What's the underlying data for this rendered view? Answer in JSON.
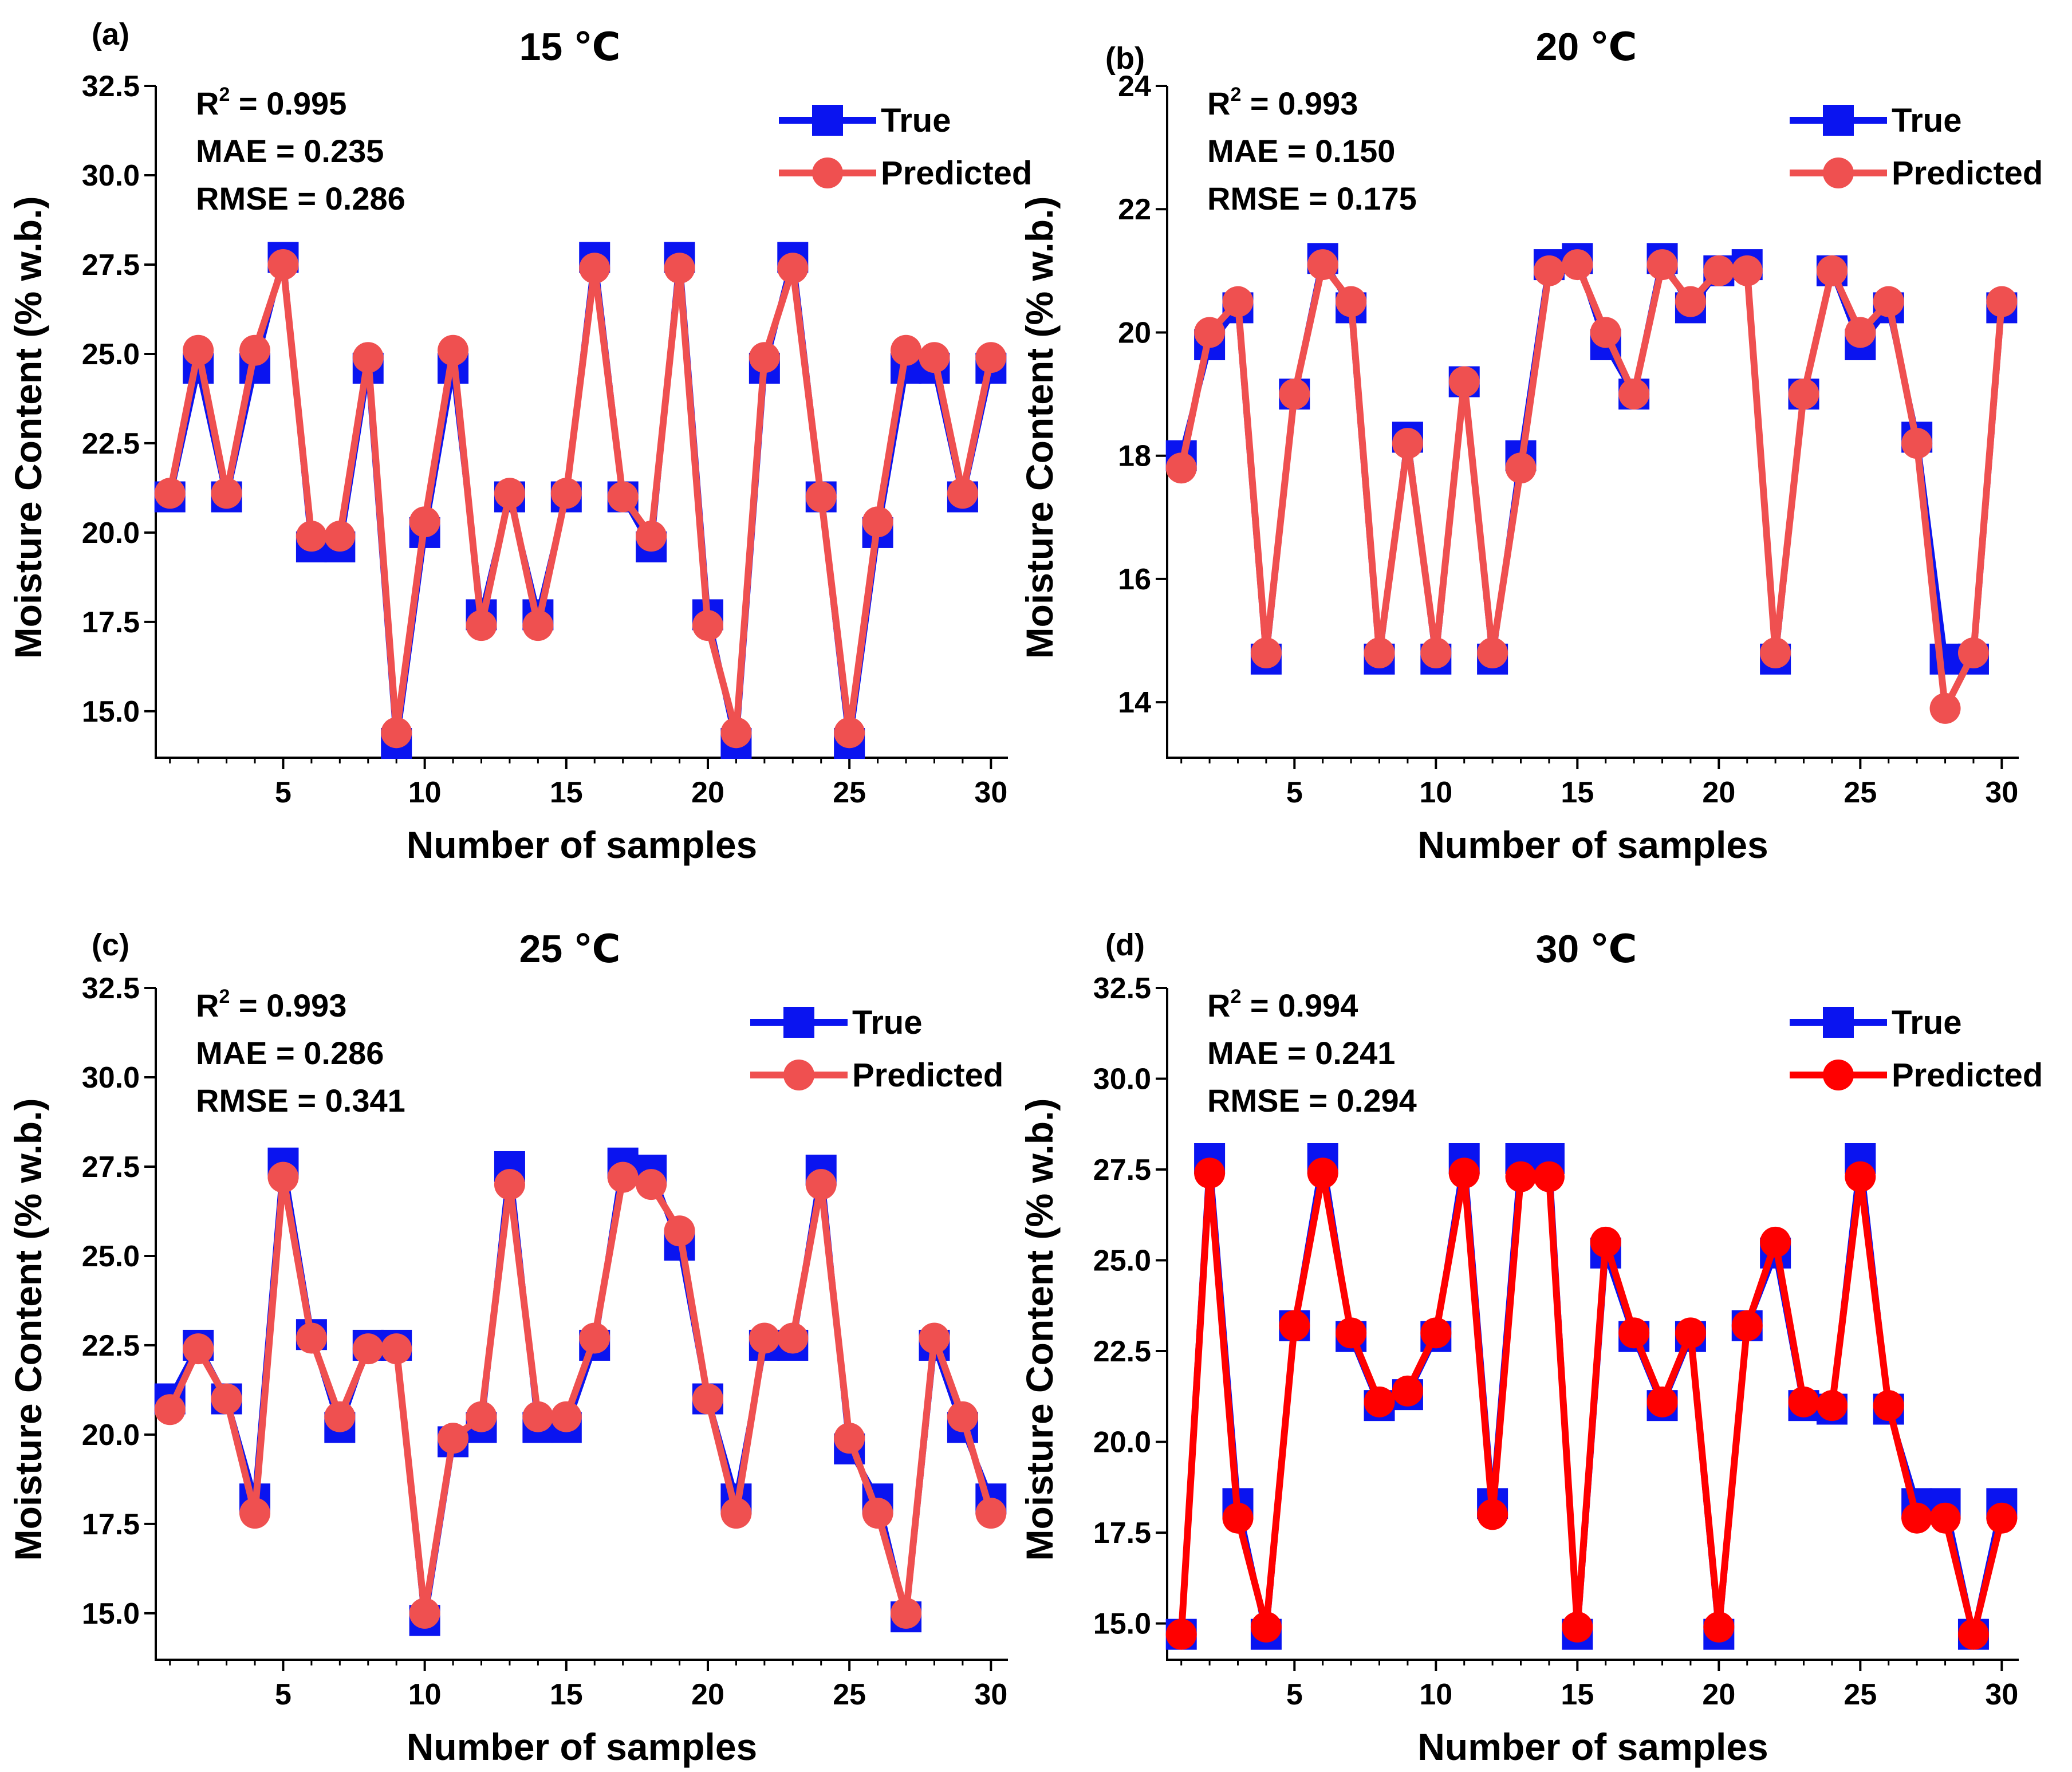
{
  "colors": {
    "true_color": "#0a14f0",
    "predicted_color": "#ef5050",
    "predicted_color_d": "#ff0000",
    "axis_color": "#000000"
  },
  "chart_data": [
    {
      "type": "line",
      "panel_label": "(a)",
      "title": "15 ℃",
      "xlabel": "Number of samples",
      "ylabel": "Moisture Content (% w.b.)",
      "xlim": [
        0.5,
        30.6
      ],
      "ylim": [
        13.7,
        32.5
      ],
      "xticks": [
        5,
        10,
        15,
        20,
        25,
        30
      ],
      "xtick_labels": [
        "5",
        "10",
        "15",
        "20",
        "25",
        "30"
      ],
      "yticks": [
        15,
        17.5,
        20,
        22.5,
        25,
        27.5,
        30,
        32.5
      ],
      "ytick_labels": [
        "15.0",
        "17.5",
        "20.0",
        "22.5",
        "25.0",
        "27.5",
        "30.0",
        "32.5"
      ],
      "metrics": {
        "r2_label": "R",
        "r2_sup": "2",
        "r2_value": " = 0.995",
        "mae": "MAE = 0.235",
        "rmse": "RMSE = 0.286"
      },
      "legend": {
        "placement": "top-right",
        "true_label": "True",
        "predicted_label": "Predicted"
      },
      "x": [
        1,
        2,
        3,
        4,
        5,
        6,
        7,
        8,
        9,
        10,
        11,
        12,
        13,
        14,
        15,
        16,
        17,
        18,
        19,
        20,
        21,
        22,
        23,
        24,
        25,
        26,
        27,
        28,
        29,
        30
      ],
      "series": [
        {
          "name": "True",
          "values": [
            21.0,
            24.6,
            21.0,
            24.6,
            27.7,
            19.6,
            19.6,
            24.6,
            14.1,
            20.0,
            24.6,
            17.7,
            21.0,
            17.7,
            21.0,
            27.7,
            21.0,
            19.6,
            27.7,
            17.7,
            14.1,
            24.6,
            27.7,
            21.0,
            14.1,
            20.0,
            24.6,
            24.6,
            21.0,
            24.6
          ]
        },
        {
          "name": "Predicted",
          "values": [
            21.1,
            25.1,
            21.1,
            25.1,
            27.5,
            19.9,
            19.9,
            24.9,
            14.4,
            20.3,
            25.1,
            17.4,
            21.1,
            17.4,
            21.1,
            27.4,
            21.0,
            19.9,
            27.4,
            17.4,
            14.4,
            24.9,
            27.4,
            21.0,
            14.4,
            20.3,
            25.1,
            24.9,
            21.1,
            24.9
          ]
        }
      ]
    },
    {
      "type": "line",
      "panel_label": "(b)",
      "title": "20 ℃",
      "xlabel": "Number of samples",
      "ylabel": "Moisture Content (% w.b.)",
      "xlim": [
        0.5,
        30.6
      ],
      "ylim": [
        13.1,
        24
      ],
      "xticks": [
        5,
        10,
        15,
        20,
        25,
        30
      ],
      "xtick_labels": [
        "5",
        "10",
        "15",
        "20",
        "25",
        "30"
      ],
      "yticks": [
        14,
        16,
        18,
        20,
        22,
        24
      ],
      "ytick_labels": [
        "14",
        "16",
        "18",
        "20",
        "22",
        "24"
      ],
      "metrics": {
        "r2_label": "R",
        "r2_sup": "2",
        "r2_value": " = 0.993",
        "mae": "MAE = 0.150",
        "rmse": "RMSE = 0.175"
      },
      "legend": {
        "placement": "top-right",
        "true_label": "True",
        "predicted_label": "Predicted"
      },
      "x": [
        1,
        2,
        3,
        4,
        5,
        6,
        7,
        8,
        9,
        10,
        11,
        12,
        13,
        14,
        15,
        16,
        17,
        18,
        19,
        20,
        21,
        22,
        23,
        24,
        25,
        26,
        27,
        28,
        29,
        30
      ],
      "series": [
        {
          "name": "True",
          "values": [
            18.0,
            19.8,
            20.4,
            14.7,
            19.0,
            21.2,
            20.4,
            14.7,
            18.3,
            14.7,
            19.2,
            14.7,
            18.0,
            21.1,
            21.2,
            19.8,
            19.0,
            21.2,
            20.4,
            21.0,
            21.1,
            14.7,
            19.0,
            21.0,
            19.8,
            20.4,
            18.3,
            14.7,
            14.7,
            20.4
          ]
        },
        {
          "name": "Predicted",
          "values": [
            17.8,
            20.0,
            20.5,
            14.8,
            19.0,
            21.1,
            20.5,
            14.8,
            18.2,
            14.8,
            19.2,
            14.8,
            17.8,
            21.0,
            21.1,
            20.0,
            19.0,
            21.1,
            20.5,
            21.0,
            21.0,
            14.8,
            19.0,
            21.0,
            20.0,
            20.5,
            18.2,
            13.9,
            14.8,
            20.5
          ]
        }
      ]
    },
    {
      "type": "line",
      "panel_label": "(c)",
      "title": "25 ℃",
      "xlabel": "Number of samples",
      "ylabel": "Moisture Content (% w.b.)",
      "xlim": [
        0.5,
        30.6
      ],
      "ylim": [
        13.7,
        32.5
      ],
      "xticks": [
        5,
        10,
        15,
        20,
        25,
        30
      ],
      "xtick_labels": [
        "5",
        "10",
        "15",
        "20",
        "25",
        "30"
      ],
      "yticks": [
        15,
        17.5,
        20,
        22.5,
        25,
        27.5,
        30,
        32.5
      ],
      "ytick_labels": [
        "15.0",
        "17.5",
        "20.0",
        "22.5",
        "25.0",
        "27.5",
        "30.0",
        "32.5"
      ],
      "metrics": {
        "r2_label": "R",
        "r2_sup": "2",
        "r2_value": " = 0.993",
        "mae": "MAE = 0.286",
        "rmse": "RMSE = 0.341"
      },
      "legend": {
        "placement": "top-right",
        "true_label": "True",
        "predicted_label": "Predicted"
      },
      "x": [
        1,
        2,
        3,
        4,
        5,
        6,
        7,
        8,
        9,
        10,
        11,
        12,
        13,
        14,
        15,
        16,
        17,
        18,
        19,
        20,
        21,
        22,
        23,
        24,
        25,
        26,
        27,
        28,
        29,
        30
      ],
      "series": [
        {
          "name": "True",
          "values": [
            21.0,
            22.5,
            21.0,
            18.2,
            27.6,
            22.8,
            20.2,
            22.5,
            22.5,
            14.8,
            19.8,
            20.2,
            27.5,
            20.2,
            20.2,
            22.5,
            27.6,
            27.4,
            25.3,
            21.0,
            18.2,
            22.5,
            22.5,
            27.4,
            19.6,
            18.2,
            14.9,
            22.5,
            20.2,
            18.2
          ]
        },
        {
          "name": "Predicted",
          "values": [
            20.7,
            22.4,
            21.0,
            17.8,
            27.2,
            22.7,
            20.5,
            22.4,
            22.4,
            15.0,
            19.9,
            20.5,
            27.0,
            20.5,
            20.5,
            22.7,
            27.2,
            27.0,
            25.7,
            21.0,
            17.8,
            22.7,
            22.7,
            27.0,
            19.9,
            17.8,
            15.0,
            22.7,
            20.5,
            17.8
          ]
        }
      ]
    },
    {
      "type": "line",
      "panel_label": "(d)",
      "title": "30 ℃",
      "xlabel": "Number of samples",
      "ylabel": "Moisture Content (% w.b.)",
      "xlim": [
        0.5,
        30.6
      ],
      "ylim": [
        14.0,
        32.5
      ],
      "xticks": [
        5,
        10,
        15,
        20,
        25,
        30
      ],
      "xtick_labels": [
        "5",
        "10",
        "15",
        "20",
        "25",
        "30"
      ],
      "yticks": [
        15,
        17.5,
        20,
        22.5,
        25,
        27.5,
        30,
        32.5
      ],
      "ytick_labels": [
        "15.0",
        "17.5",
        "20.0",
        "22.5",
        "25.0",
        "27.5",
        "30.0",
        "32.5"
      ],
      "metrics": {
        "r2_label": "R",
        "r2_sup": "2",
        "r2_value": " = 0.994",
        "mae": "MAE = 0.241",
        "rmse": "RMSE = 0.294"
      },
      "legend": {
        "placement": "top-right",
        "true_label": "True",
        "predicted_label": "Predicted"
      },
      "x": [
        1,
        2,
        3,
        4,
        5,
        6,
        7,
        8,
        9,
        10,
        11,
        12,
        13,
        14,
        15,
        16,
        17,
        18,
        19,
        20,
        21,
        22,
        23,
        24,
        25,
        26,
        27,
        28,
        29,
        30
      ],
      "series": [
        {
          "name": "True",
          "values": [
            14.7,
            27.8,
            18.3,
            14.7,
            23.2,
            27.8,
            22.9,
            21.0,
            21.3,
            22.9,
            27.8,
            18.3,
            27.8,
            27.8,
            14.7,
            25.2,
            22.9,
            21.0,
            22.9,
            14.7,
            23.2,
            25.2,
            21.0,
            20.9,
            27.8,
            20.9,
            18.3,
            18.3,
            14.7,
            18.3
          ]
        },
        {
          "name": "Predicted",
          "values": [
            14.7,
            27.4,
            17.9,
            14.9,
            23.2,
            27.4,
            23.0,
            21.1,
            21.4,
            23.0,
            27.4,
            18.0,
            27.3,
            27.3,
            14.9,
            25.5,
            23.0,
            21.1,
            23.0,
            14.9,
            23.2,
            25.5,
            21.1,
            21.0,
            27.3,
            21.0,
            17.9,
            17.9,
            14.7,
            17.9
          ]
        }
      ]
    }
  ]
}
